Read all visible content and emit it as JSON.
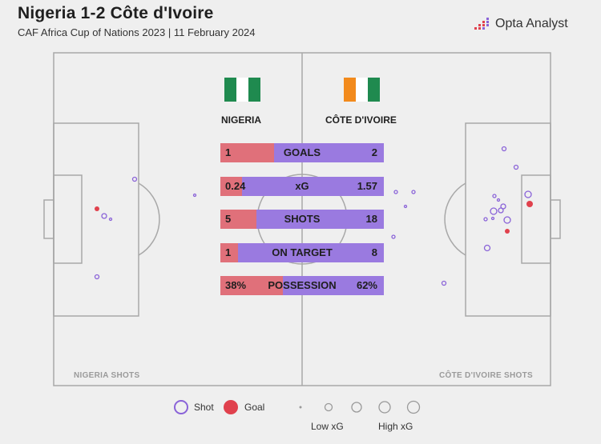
{
  "header": {
    "title": "Nigeria 1-2 Côte d'Ivoire",
    "subtitle": "CAF Africa Cup of Nations 2023 | 11 February 2024",
    "brand": "Opta Analyst"
  },
  "teams": {
    "home": {
      "name": "NIGERIA",
      "shots_label": "NIGERIA SHOTS"
    },
    "away": {
      "name": "CÔTE D'IVOIRE",
      "shots_label": "CÔTE D'IVOIRE SHOTS"
    }
  },
  "colors": {
    "home": "#e0707a",
    "away": "#9a7ae0",
    "goal": "#e0414d",
    "shot": "#8a63d8",
    "pitch_line": "#a8a8a8",
    "background": "#efefef",
    "flag_green": "#1f8a4f",
    "flag_orange": "#f28a1c"
  },
  "legend": {
    "shot": "Shot",
    "goal": "Goal",
    "low_xg": "Low xG",
    "high_xg": "High xG"
  },
  "chart_data": {
    "type": "table",
    "stats": [
      {
        "label": "GOALS",
        "home": "1",
        "away": "2",
        "home_share": 0.33
      },
      {
        "label": "xG",
        "home": "0.24",
        "away": "1.57",
        "home_share": 0.13
      },
      {
        "label": "SHOTS",
        "home": "5",
        "away": "18",
        "home_share": 0.22
      },
      {
        "label": "ON TARGET",
        "home": "1",
        "away": "8",
        "home_share": 0.11
      },
      {
        "label": "POSSESSION",
        "home": "38%",
        "away": "62%",
        "home_share": 0.38
      }
    ]
  }
}
